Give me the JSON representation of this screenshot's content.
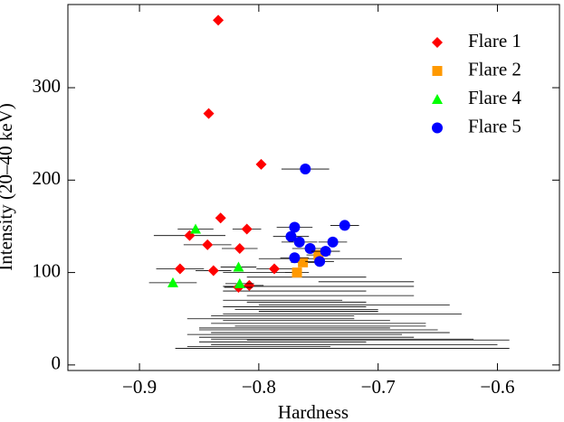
{
  "chart_data": {
    "type": "scatter",
    "x_label": "Hardness",
    "y_label": "Intensity (20–40 keV)",
    "xlim": [
      -0.96,
      -0.548
    ],
    "ylim": [
      -6,
      390
    ],
    "xticks": [
      {
        "value": -0.9,
        "label": "−0.9"
      },
      {
        "value": -0.8,
        "label": "−0.8"
      },
      {
        "value": -0.7,
        "label": "−0.7"
      },
      {
        "value": -0.6,
        "label": "−0.6"
      }
    ],
    "yticks": [
      0,
      100,
      200,
      300
    ],
    "legend": "upper right",
    "series": [
      {
        "color": "#000000",
        "marker": "none",
        "x": [
          -0.8,
          -0.78,
          -0.76,
          -0.74,
          -0.77,
          -0.75,
          -0.79,
          -0.73,
          -0.76,
          -0.72,
          -0.78,
          -0.74,
          -0.77,
          -0.75,
          -0.71,
          -0.76,
          -0.8,
          -0.73,
          -0.77,
          -0.75,
          -0.74,
          -0.76,
          -0.78,
          -0.72,
          -0.75,
          -0.77,
          -0.73,
          -0.76,
          -0.74,
          -0.7
        ],
        "y": [
          20,
          25,
          30,
          35,
          40,
          45,
          50,
          55,
          60,
          65,
          70,
          75,
          80,
          85,
          90,
          95,
          100,
          28,
          33,
          38,
          42,
          48,
          53,
          22,
          58,
          63,
          18,
          68,
          115,
          27
        ],
        "xerr": [
          0.06,
          0.07,
          0.09,
          0.1,
          0.08,
          0.09,
          0.07,
          0.1,
          0.06,
          0.08,
          0.05,
          0.07,
          0.06,
          0.08,
          0.04,
          0.05,
          0.03,
          0.11,
          0.09,
          0.1,
          0.08,
          0.07,
          0.06,
          0.12,
          0.05,
          0.06,
          0.14,
          0.05,
          0.06,
          0.11
        ]
      },
      {
        "name": "Flare 1",
        "color": "#ff0000",
        "marker": "diamond",
        "x": [
          -0.834,
          -0.842,
          -0.798,
          -0.832,
          -0.81,
          -0.858,
          -0.843,
          -0.816,
          -0.866,
          -0.838,
          -0.787,
          -0.808,
          -0.817
        ],
        "y": [
          373,
          272,
          217,
          159,
          147,
          140,
          130,
          126,
          104,
          102,
          104,
          86,
          84
        ],
        "xerr": [
          0,
          0,
          0,
          0,
          0.012,
          0.03,
          0.02,
          0.015,
          0.02,
          0.015,
          0.015,
          0.012,
          0.012
        ]
      },
      {
        "name": "Flare 2",
        "color": "#ff9900",
        "marker": "square",
        "x": [
          -0.768,
          -0.763,
          -0.75
        ],
        "y": [
          100,
          111,
          119
        ],
        "xerr": [
          0.01,
          0.01,
          0.01
        ]
      },
      {
        "name": "Flare 4",
        "color": "#00ff00",
        "marker": "triangle",
        "x": [
          -0.853,
          -0.817,
          -0.816,
          -0.872
        ],
        "y": [
          147,
          106,
          88,
          89
        ],
        "xerr": [
          0.015,
          0.015,
          0.012,
          0.02
        ]
      },
      {
        "name": "Flare 5",
        "color": "#0000ff",
        "marker": "circle",
        "x": [
          -0.761,
          -0.77,
          -0.773,
          -0.766,
          -0.757,
          -0.744,
          -0.749,
          -0.738,
          -0.728,
          -0.77
        ],
        "y": [
          212,
          149,
          139,
          133,
          126,
          123,
          112,
          133,
          151,
          116
        ],
        "xerr": [
          0.02,
          0.015,
          0.015,
          0.015,
          0.015,
          0.012,
          0.012,
          0.012,
          0.012,
          0.012
        ]
      }
    ]
  }
}
